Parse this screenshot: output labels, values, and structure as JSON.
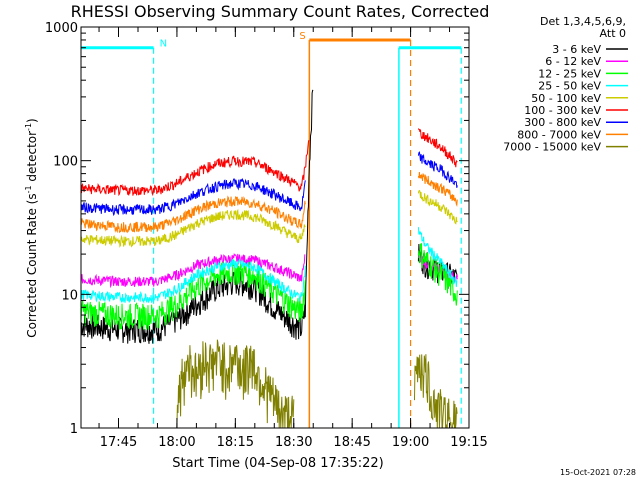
{
  "chart_data": {
    "type": "line",
    "title": "RHESSI Observing Summary Count Rates, Corrected",
    "xlabel": "Start Time (04-Sep-08 17:35:22)",
    "ylabel": "Corrected Count Rate (s",
    "ylabel_sup1": "-1",
    "ylabel_mid": " detector",
    "ylabel_sup2": "-1",
    "ylabel_end": ")",
    "y_scale": "log",
    "ylim": [
      1,
      1000
    ],
    "xlim": [
      "17:35:22",
      "19:15:00"
    ],
    "x_ticks": [
      "17:45",
      "18:00",
      "18:15",
      "18:30",
      "18:45",
      "19:00",
      "19:15"
    ],
    "y_ticks": [
      "1",
      "10",
      "100",
      "1000"
    ],
    "legend_header": "Det 1,3,4,5,6,9,",
    "legend_header2": "Att 0",
    "legend_position": "top-right outside",
    "series": [
      {
        "name": "3 - 6 keV",
        "color": "#000000",
        "points": [
          [
            "17:35:22",
            6
          ],
          [
            "17:45",
            5.5
          ],
          [
            "17:55",
            5.5
          ],
          [
            "18:00",
            6.5
          ],
          [
            "18:05",
            8.5
          ],
          [
            "18:10",
            11
          ],
          [
            "18:15",
            12.5
          ],
          [
            "18:20",
            11.5
          ],
          [
            "18:25",
            8
          ],
          [
            "18:30",
            6
          ],
          [
            "18:32",
            5.5
          ],
          [
            "18:33",
            8
          ],
          [
            "18:34",
            100
          ],
          [
            "18:35",
            400
          ]
        ],
        "points_after": [
          [
            "19:02",
            20
          ],
          [
            "19:04",
            17
          ],
          [
            "19:08",
            15
          ],
          [
            "19:12",
            13
          ]
        ]
      },
      {
        "name": "6 - 12 keV",
        "color": "#ff00ff",
        "points": [
          [
            "17:35:22",
            13
          ],
          [
            "17:45",
            12.5
          ],
          [
            "17:55",
            12.5
          ],
          [
            "18:00",
            14
          ],
          [
            "18:05",
            16.5
          ],
          [
            "18:10",
            18
          ],
          [
            "18:15",
            18.5
          ],
          [
            "18:20",
            18
          ],
          [
            "18:25",
            16
          ],
          [
            "18:30",
            14
          ],
          [
            "18:32",
            13
          ],
          [
            "18:33",
            20
          ]
        ],
        "points_after": [
          [
            "19:02",
            20
          ],
          [
            "19:04",
            17
          ],
          [
            "19:08",
            15
          ],
          [
            "19:12",
            13
          ]
        ]
      },
      {
        "name": "12 - 25 keV",
        "color": "#00ff00",
        "points": [
          [
            "17:35:22",
            7.5
          ],
          [
            "17:45",
            7
          ],
          [
            "17:55",
            7
          ],
          [
            "18:00",
            8.5
          ],
          [
            "18:05",
            11.5
          ],
          [
            "18:10",
            14
          ],
          [
            "18:15",
            15
          ],
          [
            "18:20",
            14
          ],
          [
            "18:25",
            10.5
          ],
          [
            "18:30",
            8
          ],
          [
            "18:32",
            7.5
          ],
          [
            "18:33",
            12
          ]
        ],
        "points_after": [
          [
            "19:02",
            22
          ],
          [
            "19:04",
            18
          ],
          [
            "19:08",
            14
          ],
          [
            "19:12",
            10
          ]
        ]
      },
      {
        "name": "25 - 50 keV",
        "color": "#00ffff",
        "points": [
          [
            "17:35:22",
            10
          ],
          [
            "17:45",
            9.5
          ],
          [
            "17:55",
            9.5
          ],
          [
            "18:00",
            11
          ],
          [
            "18:05",
            14
          ],
          [
            "18:10",
            16
          ],
          [
            "18:15",
            17
          ],
          [
            "18:20",
            16
          ],
          [
            "18:25",
            12.5
          ],
          [
            "18:30",
            10
          ],
          [
            "18:32",
            9.5
          ],
          [
            "18:33",
            16
          ]
        ],
        "points_after": [
          [
            "19:02",
            30
          ],
          [
            "19:04",
            23
          ],
          [
            "19:08",
            17
          ],
          [
            "19:12",
            12
          ]
        ]
      },
      {
        "name": "50 - 100 keV",
        "color": "#cccc00",
        "points": [
          [
            "17:35:22",
            26
          ],
          [
            "17:45",
            25
          ],
          [
            "17:55",
            25
          ],
          [
            "18:00",
            28
          ],
          [
            "18:05",
            34
          ],
          [
            "18:10",
            38
          ],
          [
            "18:15",
            40
          ],
          [
            "18:20",
            38
          ],
          [
            "18:25",
            33
          ],
          [
            "18:30",
            27
          ],
          [
            "18:32",
            26
          ],
          [
            "18:33",
            35
          ]
        ],
        "points_after": [
          [
            "19:02",
            58
          ],
          [
            "19:04",
            52
          ],
          [
            "19:08",
            45
          ],
          [
            "19:12",
            35
          ]
        ]
      },
      {
        "name": "100 - 300 keV",
        "color": "#ff0000",
        "points": [
          [
            "17:35:22",
            62
          ],
          [
            "17:45",
            60
          ],
          [
            "17:55",
            60
          ],
          [
            "18:00",
            68
          ],
          [
            "18:05",
            82
          ],
          [
            "18:10",
            95
          ],
          [
            "18:15",
            100
          ],
          [
            "18:20",
            97
          ],
          [
            "18:25",
            83
          ],
          [
            "18:30",
            68
          ],
          [
            "18:32",
            63
          ],
          [
            "18:33",
            90
          ],
          [
            "18:34",
            160
          ]
        ],
        "points_after": [
          [
            "19:02",
            165
          ],
          [
            "19:04",
            150
          ],
          [
            "19:08",
            125
          ],
          [
            "19:12",
            95
          ]
        ]
      },
      {
        "name": "300 - 800 keV",
        "color": "#0000ff",
        "points": [
          [
            "17:35:22",
            45
          ],
          [
            "17:45",
            43
          ],
          [
            "17:55",
            43
          ],
          [
            "18:00",
            48
          ],
          [
            "18:05",
            57
          ],
          [
            "18:10",
            64
          ],
          [
            "18:15",
            68
          ],
          [
            "18:20",
            65
          ],
          [
            "18:25",
            56
          ],
          [
            "18:30",
            47
          ],
          [
            "18:32",
            44
          ],
          [
            "18:33",
            70
          ]
        ],
        "points_after": [
          [
            "19:02",
            108
          ],
          [
            "19:04",
            98
          ],
          [
            "19:08",
            85
          ],
          [
            "19:12",
            66
          ]
        ]
      },
      {
        "name": "800 - 7000 keV",
        "color": "#ff8000",
        "points": [
          [
            "17:35:22",
            34
          ],
          [
            "17:45",
            32
          ],
          [
            "17:55",
            32
          ],
          [
            "18:00",
            36
          ],
          [
            "18:05",
            43
          ],
          [
            "18:10",
            48
          ],
          [
            "18:15",
            50
          ],
          [
            "18:20",
            48
          ],
          [
            "18:25",
            42
          ],
          [
            "18:30",
            35
          ],
          [
            "18:32",
            33
          ],
          [
            "18:33",
            50
          ]
        ],
        "points_after": [
          [
            "19:02",
            80
          ],
          [
            "19:04",
            72
          ],
          [
            "19:08",
            62
          ],
          [
            "19:12",
            50
          ]
        ]
      },
      {
        "name": "7000 - 15000 keV",
        "color": "#808000",
        "points": [
          [
            "18:00",
            1.4
          ],
          [
            "18:01",
            2.2
          ],
          [
            "18:03",
            3.3
          ],
          [
            "18:05",
            2.5
          ],
          [
            "18:07",
            3.4
          ],
          [
            "18:09",
            3.0
          ],
          [
            "18:11",
            3.4
          ],
          [
            "18:13",
            2.8
          ],
          [
            "18:15",
            3.5
          ],
          [
            "18:17",
            2.6
          ],
          [
            "18:19",
            3.4
          ],
          [
            "18:21",
            2.5
          ],
          [
            "18:23",
            2.0
          ],
          [
            "18:25",
            1.6
          ],
          [
            "18:27",
            1.3
          ],
          [
            "18:30",
            1.2
          ]
        ],
        "points_after": [
          [
            "19:01",
            2.0
          ],
          [
            "19:02",
            3.3
          ],
          [
            "19:04",
            2.5
          ],
          [
            "19:06",
            1.6
          ],
          [
            "19:08",
            1.3
          ],
          [
            "19:10",
            1.2
          ],
          [
            "19:12",
            1.1
          ]
        ]
      }
    ],
    "annotations": [
      {
        "label": "N",
        "color": "#00ffff",
        "level": 700,
        "from": "17:35:22",
        "to": "17:54",
        "dashed_at": "17:54"
      },
      {
        "label": "S",
        "color": "#ff8000",
        "level": 800,
        "from": "18:34",
        "to": "19:00",
        "solid_at": "18:34",
        "dashed_at": "19:00"
      },
      {
        "label": "",
        "color": "#00ffff",
        "level": 700,
        "from": "18:57",
        "to": "19:13",
        "solid_at": "18:57",
        "dashed_at": "19:13"
      }
    ],
    "data_gap": [
      "18:36",
      "19:01"
    ]
  },
  "footer_date": "15-Oct-2021 07:28"
}
